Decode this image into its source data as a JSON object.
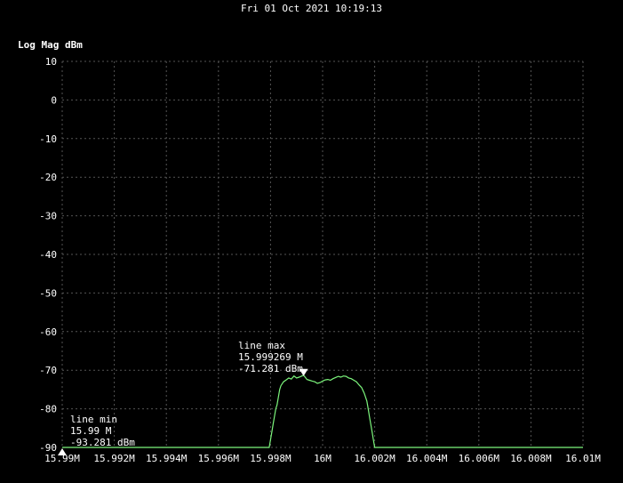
{
  "header": {
    "timestamp": "Fri 01 Oct 2021 10:19:13",
    "unit_label": "Log Mag dBm"
  },
  "colors": {
    "background": "#000000",
    "trace": "#7CF57C",
    "grid": "#555555",
    "text": "#ffffff"
  },
  "markers": {
    "max": {
      "name": "line max",
      "freq": "15.999269 M",
      "level": "-71.281 dBm",
      "x": 15.999269,
      "y": -71.281
    },
    "min": {
      "name": "line min",
      "freq": "15.99 M",
      "level": "-93.281 dBm",
      "x": 15.99,
      "y": -93.281
    }
  },
  "chart_data": {
    "type": "line",
    "title": "",
    "xlabel": "",
    "ylabel": "Log Mag dBm",
    "xlim": [
      15.99,
      16.01
    ],
    "ylim": [
      -90,
      10
    ],
    "grid": true,
    "x_ticks": [
      15.99,
      15.992,
      15.994,
      15.996,
      15.998,
      16.0,
      16.002,
      16.004,
      16.006,
      16.008,
      16.01
    ],
    "x_tick_labels": [
      "15.99M",
      "15.992M",
      "15.994M",
      "15.996M",
      "15.998M",
      "16M",
      "16.002M",
      "16.004M",
      "16.006M",
      "16.008M",
      "16.01M"
    ],
    "y_ticks": [
      10,
      0,
      -10,
      -20,
      -30,
      -40,
      -50,
      -60,
      -70,
      -80,
      -90
    ],
    "y_tick_labels": [
      "10",
      "0",
      "-10",
      "-20",
      "-30",
      "-40",
      "-50",
      "-60",
      "-70",
      "-80",
      "-90"
    ],
    "series": [
      {
        "x": [
          15.99,
          15.9965,
          15.99665,
          15.9968,
          15.9969,
          15.9978,
          15.99795,
          15.998,
          15.99805,
          15.9981,
          15.99815,
          15.9982,
          15.99825,
          15.9983,
          15.99835,
          15.9984,
          15.9985,
          15.9986,
          15.9987,
          15.9988,
          15.9989,
          15.999,
          15.9991,
          15.99927,
          15.9994,
          15.9995,
          15.9996,
          15.9997,
          15.9998,
          15.9999,
          16.0,
          16.0001,
          16.0002,
          16.0003,
          16.0004,
          16.0005,
          16.0006,
          16.0007,
          16.0008,
          16.0009,
          16.001,
          16.0011,
          16.0012,
          16.0013,
          16.0014,
          16.0015,
          16.0016,
          16.0017,
          16.00175,
          16.0018,
          16.00185,
          16.0019,
          16.00195,
          16.002,
          16.0021,
          16.01
        ],
        "y": [
          -93,
          -93,
          -91,
          -93,
          -93,
          -93,
          -92,
          -88,
          -86,
          -84,
          -82,
          -80,
          -79,
          -77,
          -75,
          -74,
          -73,
          -72.5,
          -72,
          -72.3,
          -71.5,
          -72,
          -71.8,
          -71.281,
          -72.4,
          -72.6,
          -72.8,
          -73,
          -73.4,
          -73.2,
          -72.8,
          -72.5,
          -72.4,
          -72.6,
          -72.2,
          -71.9,
          -71.6,
          -71.8,
          -71.5,
          -71.6,
          -72.0,
          -72.2,
          -72.6,
          -73.0,
          -73.8,
          -74.5,
          -76,
          -78,
          -80,
          -82,
          -84,
          -86,
          -88,
          -90,
          -93,
          -93
        ]
      }
    ]
  }
}
